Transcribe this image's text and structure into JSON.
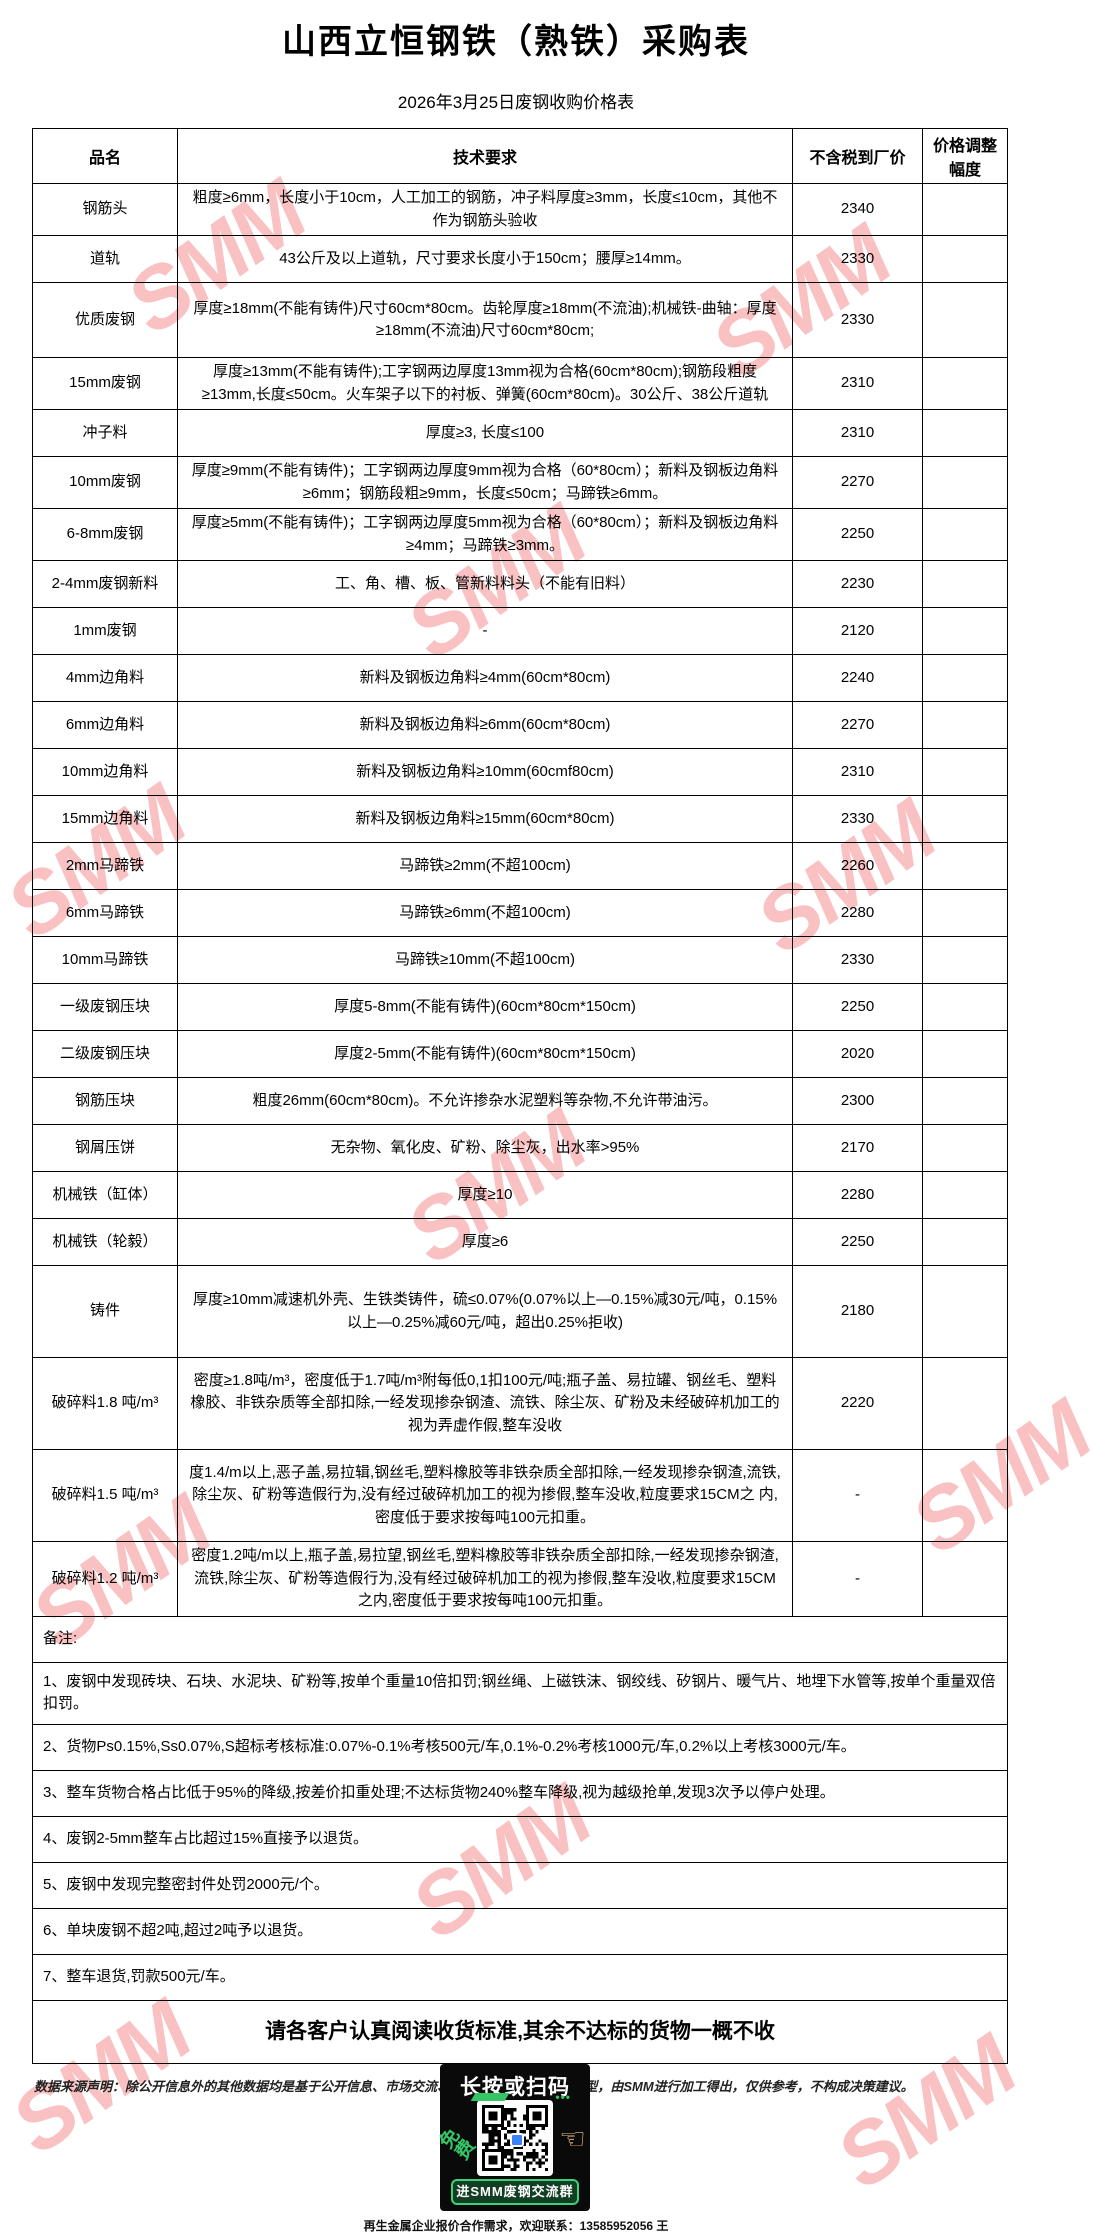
{
  "title": "山西立恒钢铁（熟铁）采购表",
  "subtitle": "2026年3月25日废钢收购价格表",
  "watermark": {
    "text": "SMM",
    "color": "#F27676"
  },
  "table": {
    "headers": [
      "品名",
      "技术要求",
      "不含税到厂价",
      "价格调整幅度"
    ],
    "rows": [
      {
        "name": "钢筋头",
        "spec": "粗度≥6mm，长度小于10cm，人工加工的钢筋，冲子料厚度≥3mm，长度≤10cm，其他不作为钢筋头验收",
        "price": "2340",
        "adjust": ""
      },
      {
        "name": "道轨",
        "spec": "43公斤及以上道轨，尺寸要求长度小于150cm；腰厚≥14mm。",
        "price": "2330",
        "adjust": ""
      },
      {
        "name": "优质废钢",
        "spec": "厚度≥18mm(不能有铸件)尺寸60cm*80cm。齿轮厚度≥18mm(不流油);机械铁-曲轴：厚度≥18mm(不流油)尺寸60cm*80cm;",
        "price": "2330",
        "adjust": ""
      },
      {
        "name": "15mm废钢",
        "spec": "厚度≥13mm(不能有铸件);工字钢两边厚度13mm视为合格(60cm*80cm);钢筋段粗度≥13mm,长度≤50cm。火车架子以下的衬板、弹簧(60cm*80cm)。30公斤、38公斤道轨",
        "price": "2310",
        "adjust": ""
      },
      {
        "name": "冲子料",
        "spec": "厚度≥3, 长度≤100",
        "price": "2310",
        "adjust": ""
      },
      {
        "name": "10mm废钢",
        "spec": "厚度≥9mm(不能有铸件)；工字钢两边厚度9mm视为合格（60*80cm）；新料及钢板边角料≥6mm；钢筋段粗≥9mm，长度≤50cm；马蹄铁≥6mm。",
        "price": "2270",
        "adjust": ""
      },
      {
        "name": "6-8mm废钢",
        "spec": "厚度≥5mm(不能有铸件)；工字钢两边厚度5mm视为合格（60*80cm）；新料及钢板边角料≥4mm；马蹄铁≥3mm。",
        "price": "2250",
        "adjust": ""
      },
      {
        "name": "2-4mm废钢新料",
        "spec": "工、角、槽、板、管新料料头（不能有旧料）",
        "price": "2230",
        "adjust": ""
      },
      {
        "name": "1mm废钢",
        "spec": "-",
        "price": "2120",
        "adjust": ""
      },
      {
        "name": "4mm边角料",
        "spec": "新料及钢板边角料≥4mm(60cm*80cm)",
        "price": "2240",
        "adjust": ""
      },
      {
        "name": "6mm边角料",
        "spec": "新料及钢板边角料≥6mm(60cm*80cm)",
        "price": "2270",
        "adjust": ""
      },
      {
        "name": "10mm边角料",
        "spec": "新料及钢板边角料≥10mm(60cmf80cm)",
        "price": "2310",
        "adjust": ""
      },
      {
        "name": "15mm边角料",
        "spec": "新料及钢板边角料≥15mm(60cm*80cm)",
        "price": "2330",
        "adjust": ""
      },
      {
        "name": "2mm马蹄铁",
        "spec": "马蹄铁≥2mm(不超100cm)",
        "price": "2260",
        "adjust": ""
      },
      {
        "name": "6mm马蹄铁",
        "spec": "马蹄铁≥6mm(不超100cm)",
        "price": "2280",
        "adjust": ""
      },
      {
        "name": "10mm马蹄铁",
        "spec": "马蹄铁≥10mm(不超100cm)",
        "price": "2330",
        "adjust": ""
      },
      {
        "name": "一级废钢压块",
        "spec": "厚度5-8mm(不能有铸件)(60cm*80cm*150cm)",
        "price": "2250",
        "adjust": ""
      },
      {
        "name": "二级废钢压块",
        "spec": "厚度2-5mm(不能有铸件)(60cm*80cm*150cm)",
        "price": "2020",
        "adjust": ""
      },
      {
        "name": "钢筋压块",
        "spec": "粗度26mm(60cm*80cm)。不允许掺杂水泥塑料等杂物,不允许带油污。",
        "price": "2300",
        "adjust": ""
      },
      {
        "name": "钢屑压饼",
        "spec": "无杂物、氧化皮、矿粉、除尘灰，出水率>95%",
        "price": "2170",
        "adjust": ""
      },
      {
        "name": "机械铁（缸体）",
        "spec": "厚度≥10",
        "price": "2280",
        "adjust": ""
      },
      {
        "name": "机械铁（轮毅）",
        "spec": "厚度≥6",
        "price": "2250",
        "adjust": ""
      },
      {
        "name": "铸件",
        "spec": "厚度≥10mm减速机外壳、生铁类铸件，硫≤0.07%(0.07%以上—0.15%减30元/吨，0.15%以上—0.25%减60元/吨，超出0.25%拒收)",
        "price": "2180",
        "adjust": ""
      },
      {
        "name": "破碎料1.8 吨/m³",
        "spec": "密度≥1.8吨/m³，密度低于1.7吨/m³附每低0,1扣100元/吨;瓶子盖、易拉罐、钢丝毛、塑料橡胶、非铁杂质等全部扣除,一经发现掺杂钢渣、流铁、除尘灰、矿粉及未经破碎机加工的视为弄虚作假,整车没收",
        "price": "2220",
        "adjust": ""
      },
      {
        "name": "破碎料1.5 吨/m³",
        "spec": "度1.4/m以上,恶子盖,易拉辑,钢丝毛,塑料橡胶等非铁杂质全部扣除,一经发现掺杂钢渣,流铁,除尘灰、矿粉等造假行为,没有经过破碎机加工的视为掺假,整车没收,粒度要求15CM之 内,密度低于要求按每吨100元扣重。",
        "price": "-",
        "adjust": ""
      },
      {
        "name": "破碎料1.2 吨/m³",
        "spec": "密度1.2吨/m以上,瓶子盖,易拉望,钢丝毛,塑料橡胶等非铁杂质全部扣除,一经发现掺杂钢渣, 流铁,除尘灰、矿粉等造假行为,没有经过破碎机加工的视为掺假,整车没收,粒度要求15CM之内,密度低于要求按每吨100元扣重。",
        "price": "-",
        "adjust": ""
      }
    ]
  },
  "remark_label": "备注:",
  "notes": {
    "items": [
      {
        "text": "1、废钢中发现砖块、石块、水泥块、矿粉等,按单个重量10倍扣罚;钢丝绳、上磁铁沫、钢绞线、矽钢片、暖气片、地埋下水管等,按单个重量双倍扣罚。"
      },
      {
        "text": "2、货物Ps0.15%,Ss0.07%,S超标考核标准:0.07%-0.1%考核500元/车,0.1%-0.2%考核1000元/车,0.2%以上考核3000元/车。"
      },
      {
        "text": "3、整车货物合格占比低于95%的降级,按差价扣重处理;不达标货物240%整车降级,视为越级抢单,发现3次予以停户处理。"
      },
      {
        "text": "4、废钢2-5mm整车占比超过15%直接予以退货。"
      },
      {
        "text": "5、废钢中发现完整密封件处罚2000元/个。"
      },
      {
        "text": "6、单块废钢不超2吨,超过2吨予以退货。"
      },
      {
        "text": "7、整车退货,罚款500元/车。"
      }
    ]
  },
  "final_notice": "请各客户认真阅读收货标准,其余不达标的货物一概不收",
  "disclaimer": "数据来源声明：除公开信息外的其他数据均是基于公开信息、市场交流、依托SMM内部数据库模型，由SMM进行加工得出，仅供参考，不构成决策建议。",
  "qr_promo": {
    "scan_label": "长按或扫码",
    "free_label": "免费",
    "group_label": "进SMM废钢交流群",
    "colors": {
      "box_bg": "#0A0A0A",
      "green": "#35C567"
    }
  },
  "contact": "再生金属企业报价合作需求，欢迎联系：13585952056 王"
}
